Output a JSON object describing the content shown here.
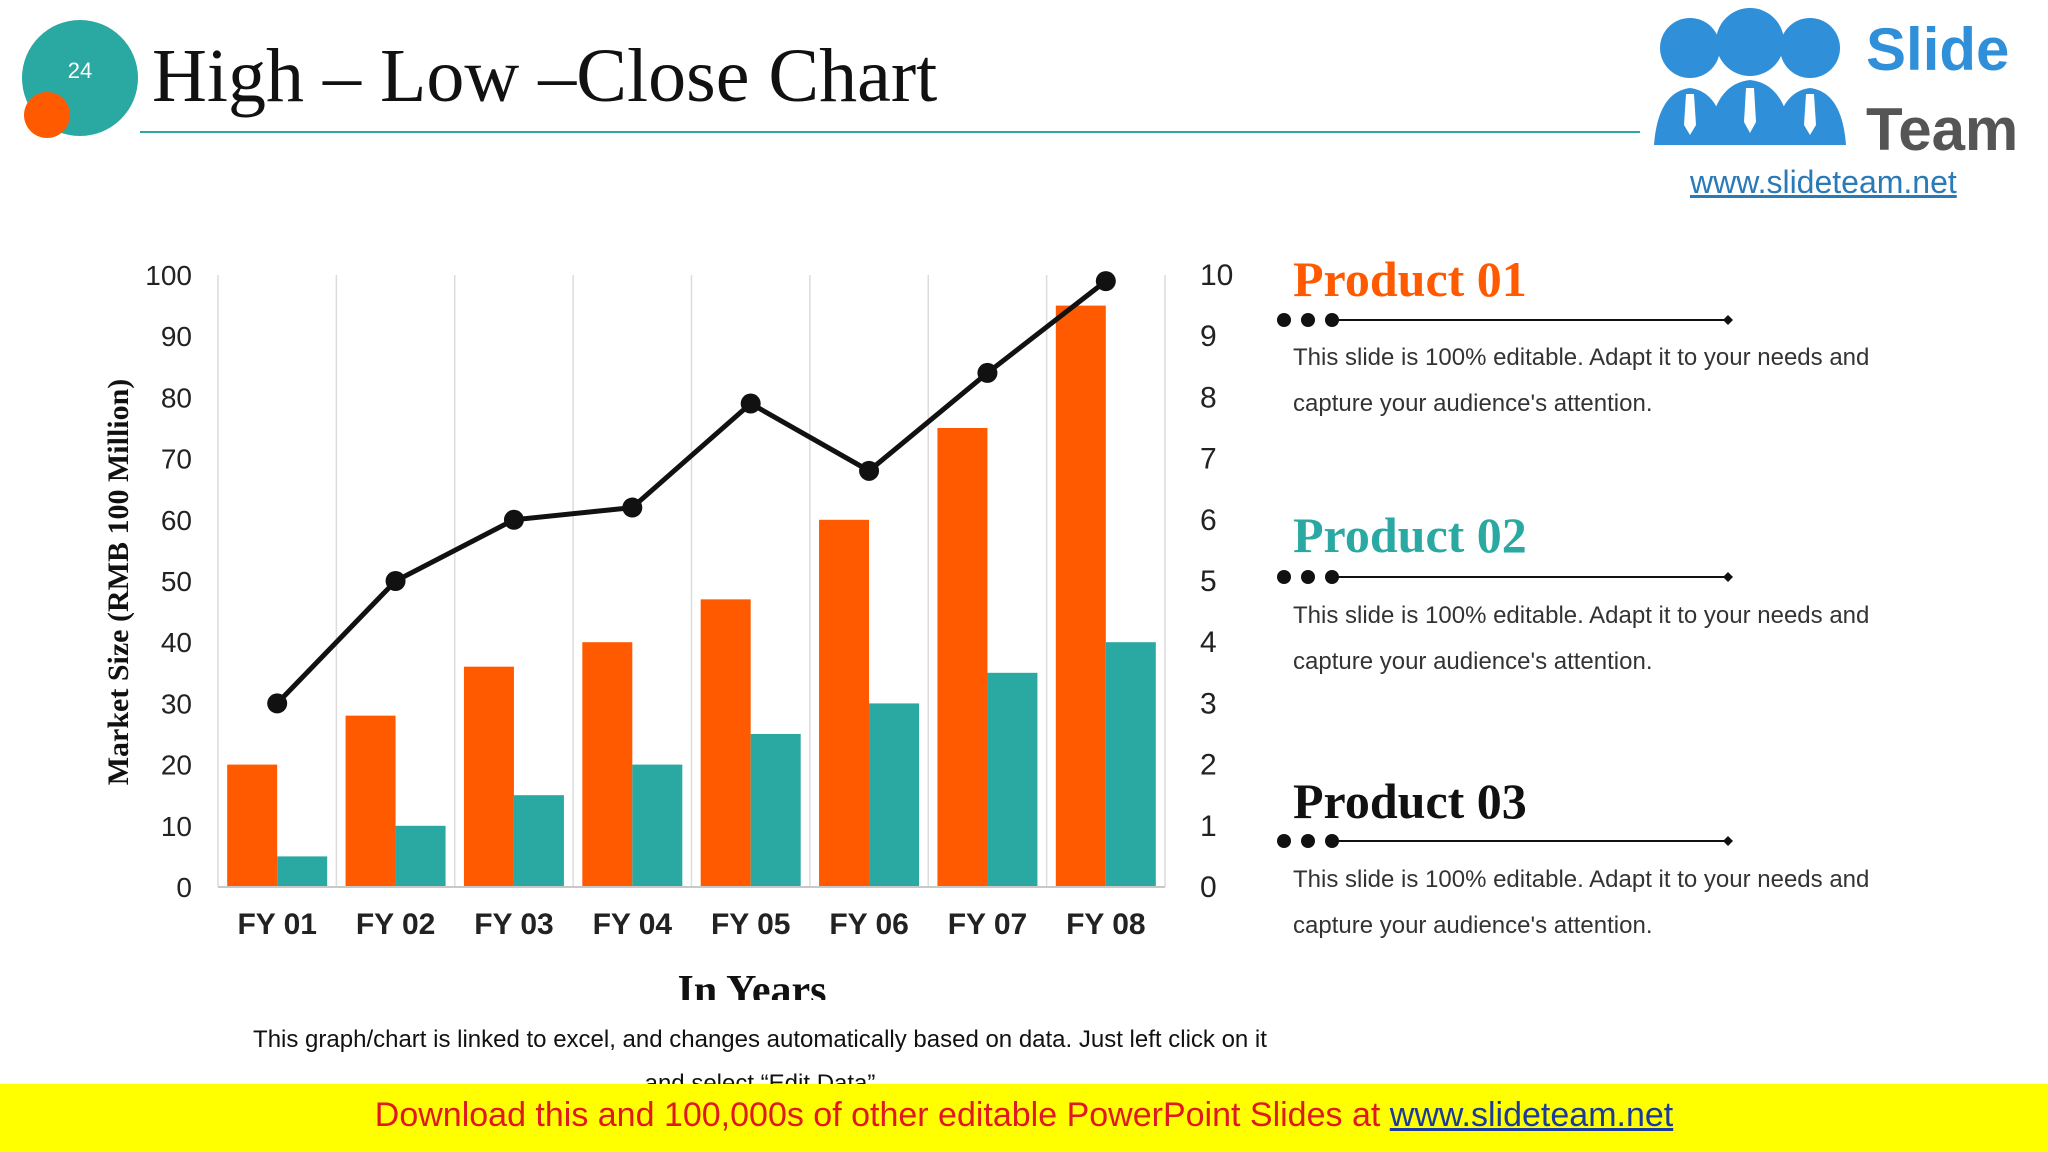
{
  "slide": {
    "number": "24",
    "title": "High – Low –Close Chart"
  },
  "logo": {
    "word1": "Slide",
    "word2": "Team",
    "url": "www.slideteam.net"
  },
  "chart_data": {
    "type": "bar",
    "title": "",
    "xlabel": "In Years",
    "ylabel": "Market Size (RMB 100 Million)",
    "categories": [
      "FY 01",
      "FY 02",
      "FY 03",
      "FY 04",
      "FY 05",
      "FY 06",
      "FY 07",
      "FY 08"
    ],
    "ylim": [
      0,
      100
    ],
    "y_ticks": [
      "0",
      "10",
      "20",
      "30",
      "40",
      "50",
      "60",
      "70",
      "80",
      "90",
      "100"
    ],
    "y2lim": [
      0,
      10
    ],
    "y2_ticks": [
      "0",
      "1",
      "2",
      "3",
      "4",
      "5",
      "6",
      "7",
      "8",
      "9",
      "10"
    ],
    "series": [
      {
        "type": "bar",
        "color": "#ff5a00",
        "axis": "left",
        "values": [
          20,
          28,
          36,
          40,
          47,
          60,
          75,
          95
        ]
      },
      {
        "type": "bar",
        "color": "#2aa8a2",
        "axis": "left",
        "values": [
          5,
          10,
          15,
          20,
          25,
          30,
          35,
          40
        ]
      },
      {
        "type": "line",
        "color": "#111111",
        "axis": "right",
        "values": [
          3,
          5,
          6,
          6.2,
          7.9,
          6.8,
          8.4,
          9.9
        ]
      }
    ],
    "grid": "vertical",
    "legend": "none"
  },
  "products": [
    {
      "title": "Product 01",
      "color": "#ff5a00",
      "text": "This slide is 100% editable. Adapt it to your needs and capture your audience's attention."
    },
    {
      "title": "Product 02",
      "color": "#2aa8a2",
      "text": "This slide is 100% editable. Adapt it to your needs and capture your audience's attention."
    },
    {
      "title": "Product 03",
      "color": "#111111",
      "text": "This slide is 100% editable. Adapt it to your needs and capture your audience's attention."
    }
  ],
  "footer_note": "This graph/chart is linked to excel, and changes automatically based on data. Just left click on it and select “Edit Data”",
  "banner": {
    "text": "Download this and 100,000s of other editable PowerPoint Slides at ",
    "link": "www.slideteam.net"
  }
}
